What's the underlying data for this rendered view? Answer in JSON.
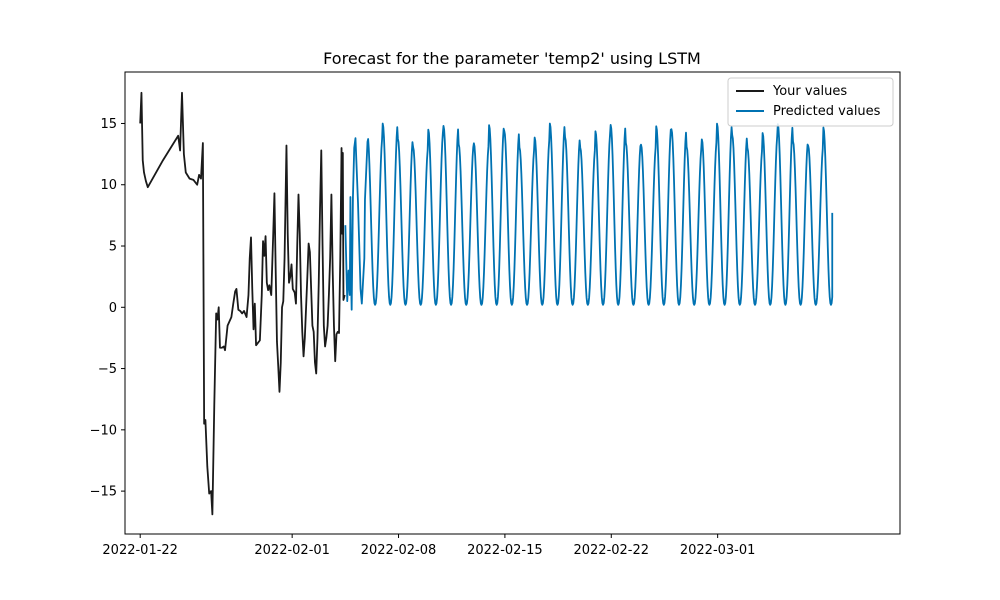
{
  "chart_data": {
    "type": "line",
    "title": "Forecast for the parameter 'temp2' using LSTM",
    "xlabel": "",
    "ylabel": "",
    "x_axis": {
      "kind": "date",
      "range": [
        "2022-01-21",
        "2022-03-13"
      ],
      "ticks": [
        "2022-01-22",
        "2022-02-01",
        "2022-02-08",
        "2022-02-15",
        "2022-02-22",
        "2022-03-01"
      ]
    },
    "y_axis": {
      "range": [
        -18.5,
        19.2
      ],
      "ticks": [
        -15,
        -10,
        -5,
        0,
        5,
        10,
        15
      ],
      "tick_labels": [
        "−15",
        "−10",
        "−5",
        "0",
        "5",
        "10",
        "15"
      ]
    },
    "grid": false,
    "legend": {
      "placement": "top-right"
    },
    "series": [
      {
        "name": "Your values",
        "color": "#1a1a1a",
        "points": [
          [
            "2022-01-22T00:00",
            15.0
          ],
          [
            "2022-01-22T02:00",
            17.5
          ],
          [
            "2022-01-22T04:00",
            12.0
          ],
          [
            "2022-01-22T06:00",
            11.0
          ],
          [
            "2022-01-22T09:00",
            10.3
          ],
          [
            "2022-01-22T12:00",
            9.8
          ],
          [
            "2022-01-23T12:00",
            12.0
          ],
          [
            "2022-01-24T00:00",
            13.0
          ],
          [
            "2022-01-24T12:00",
            14.0
          ],
          [
            "2022-01-24T15:00",
            12.8
          ],
          [
            "2022-01-24T18:00",
            17.5
          ],
          [
            "2022-01-24T21:00",
            12.5
          ],
          [
            "2022-01-25T00:00",
            11.0
          ],
          [
            "2022-01-25T06:00",
            10.5
          ],
          [
            "2022-01-25T12:00",
            10.4
          ],
          [
            "2022-01-25T18:00",
            10.0
          ],
          [
            "2022-01-25T21:00",
            10.8
          ],
          [
            "2022-01-26T00:00",
            10.5
          ],
          [
            "2022-01-26T03:00",
            13.4
          ],
          [
            "2022-01-26T05:00",
            -9.5
          ],
          [
            "2022-01-26T07:00",
            -9.2
          ],
          [
            "2022-01-26T10:00",
            -13.0
          ],
          [
            "2022-01-26T13:00",
            -15.2
          ],
          [
            "2022-01-26T16:00",
            -15.0
          ],
          [
            "2022-01-26T18:00",
            -16.9
          ],
          [
            "2022-01-26T21:00",
            -8.0
          ],
          [
            "2022-01-27T00:00",
            -0.5
          ],
          [
            "2022-01-27T02:00",
            -1.0
          ],
          [
            "2022-01-27T04:00",
            0.0
          ],
          [
            "2022-01-27T06:00",
            -3.3
          ],
          [
            "2022-01-27T09:00",
            -3.3
          ],
          [
            "2022-01-27T12:00",
            -3.2
          ],
          [
            "2022-01-27T14:00",
            -3.5
          ],
          [
            "2022-01-27T18:00",
            -1.5
          ],
          [
            "2022-01-28T00:00",
            -0.8
          ],
          [
            "2022-01-28T03:00",
            0.3
          ],
          [
            "2022-01-28T06:00",
            1.3
          ],
          [
            "2022-01-28T08:00",
            1.5
          ],
          [
            "2022-01-28T11:00",
            -0.2
          ],
          [
            "2022-01-28T14:00",
            -0.3
          ],
          [
            "2022-01-28T17:00",
            -0.5
          ],
          [
            "2022-01-28T20:00",
            -0.3
          ],
          [
            "2022-01-29T00:00",
            -0.8
          ],
          [
            "2022-01-29T03:00",
            1.0
          ],
          [
            "2022-01-29T05:00",
            4.0
          ],
          [
            "2022-01-29T07:00",
            5.7
          ],
          [
            "2022-01-29T09:00",
            1.5
          ],
          [
            "2022-01-29T11:00",
            -1.8
          ],
          [
            "2022-01-29T13:00",
            0.3
          ],
          [
            "2022-01-29T15:00",
            -3.1
          ],
          [
            "2022-01-29T18:00",
            -2.9
          ],
          [
            "2022-01-29T21:00",
            -2.7
          ],
          [
            "2022-01-30T00:00",
            1.0
          ],
          [
            "2022-01-30T02:00",
            5.4
          ],
          [
            "2022-01-30T04:00",
            4.2
          ],
          [
            "2022-01-30T06:00",
            5.8
          ],
          [
            "2022-01-30T08:00",
            2.0
          ],
          [
            "2022-01-30T10:00",
            1.4
          ],
          [
            "2022-01-30T12:00",
            1.8
          ],
          [
            "2022-01-30T15:00",
            1.0
          ],
          [
            "2022-01-30T18:00",
            5.8
          ],
          [
            "2022-01-30T20:00",
            9.3
          ],
          [
            "2022-01-30T22:00",
            3.0
          ],
          [
            "2022-01-31T00:00",
            -2.8
          ],
          [
            "2022-01-31T02:00",
            -4.8
          ],
          [
            "2022-01-31T04:00",
            -6.9
          ],
          [
            "2022-01-31T06:00",
            -4.5
          ],
          [
            "2022-01-31T08:00",
            0.0
          ],
          [
            "2022-01-31T10:00",
            0.5
          ],
          [
            "2022-01-31T12:00",
            4.0
          ],
          [
            "2022-01-31T15:00",
            13.2
          ],
          [
            "2022-01-31T17:00",
            6.0
          ],
          [
            "2022-01-31T19:00",
            2.0
          ],
          [
            "2022-01-31T21:00",
            2.5
          ],
          [
            "2022-01-31T23:00",
            3.5
          ],
          [
            "2022-02-01T01:00",
            1.5
          ],
          [
            "2022-02-01T04:00",
            1.2
          ],
          [
            "2022-02-01T06:00",
            0.3
          ],
          [
            "2022-02-01T08:00",
            5.0
          ],
          [
            "2022-02-01T10:00",
            9.2
          ],
          [
            "2022-02-01T12:00",
            6.0
          ],
          [
            "2022-02-01T14:00",
            1.0
          ],
          [
            "2022-02-01T16:00",
            -2.0
          ],
          [
            "2022-02-01T18:00",
            -4.0
          ],
          [
            "2022-02-01T20:00",
            -2.5
          ],
          [
            "2022-02-01T22:00",
            0.0
          ],
          [
            "2022-02-02T00:00",
            2.5
          ],
          [
            "2022-02-02T02:00",
            5.2
          ],
          [
            "2022-02-02T04:00",
            4.5
          ],
          [
            "2022-02-02T06:00",
            1.5
          ],
          [
            "2022-02-02T08:00",
            -1.5
          ],
          [
            "2022-02-02T10:00",
            -2.0
          ],
          [
            "2022-02-02T12:00",
            -4.5
          ],
          [
            "2022-02-02T14:00",
            -5.4
          ],
          [
            "2022-02-02T16:00",
            -2.5
          ],
          [
            "2022-02-02T18:00",
            2.0
          ],
          [
            "2022-02-02T20:00",
            8.0
          ],
          [
            "2022-02-02T22:00",
            12.8
          ],
          [
            "2022-02-03T00:00",
            5.0
          ],
          [
            "2022-02-03T02:00",
            -1.5
          ],
          [
            "2022-02-03T04:00",
            -3.2
          ],
          [
            "2022-02-03T06:00",
            -2.5
          ],
          [
            "2022-02-03T08:00",
            -1.5
          ],
          [
            "2022-02-03T10:00",
            1.0
          ],
          [
            "2022-02-03T12:00",
            4.0
          ],
          [
            "2022-02-03T14:00",
            9.2
          ],
          [
            "2022-02-03T16:00",
            3.0
          ],
          [
            "2022-02-03T18:00",
            -1.5
          ],
          [
            "2022-02-03T20:00",
            -4.4
          ],
          [
            "2022-02-03T22:00",
            -2.2
          ],
          [
            "2022-02-04T00:00",
            -2.0
          ],
          [
            "2022-02-04T02:00",
            -2.1
          ],
          [
            "2022-02-04T04:00",
            4.0
          ],
          [
            "2022-02-04T06:00",
            13.0
          ],
          [
            "2022-02-04T07:00",
            6.0
          ],
          [
            "2022-02-04T08:00",
            12.6
          ],
          [
            "2022-02-04T09:00",
            0.6
          ],
          [
            "2022-02-04T11:00",
            1.0
          ]
        ]
      },
      {
        "name": "Predicted values",
        "color": "#0072b2",
        "points": [
          [
            "2022-02-04T12:00",
            6.7
          ],
          [
            "2022-02-04T15:00",
            0.5
          ],
          [
            "2022-02-04T17:00",
            3.0
          ],
          [
            "2022-02-04T19:00",
            1.0
          ],
          [
            "2022-02-04T20:00",
            9.0
          ],
          [
            "2022-02-04T21:00",
            2.5
          ],
          [
            "2022-02-04T22:00",
            -0.2
          ],
          [
            "2022-02-05T00:00",
            9.0
          ],
          [
            "2022-02-05T02:00",
            13.0
          ],
          [
            "2022-02-05T04:00",
            13.8
          ],
          [
            "2022-02-05T08:00",
            8.5
          ],
          [
            "2022-02-05T12:00",
            1.5
          ],
          [
            "2022-02-05T14:00",
            0.3
          ],
          [
            "2022-02-05T18:00",
            4.0
          ],
          [
            "2022-02-05T19:00",
            8.8
          ],
          [
            "2022-02-05T23:00",
            13.5
          ]
        ],
        "periodic": {
          "start": "2022-02-05T23:00",
          "end": "2022-03-08T13:00",
          "period_hours": 24,
          "peak_range": [
            13.0,
            15.0
          ],
          "trough": 0.2,
          "note_end_value": 7.7
        }
      }
    ]
  }
}
